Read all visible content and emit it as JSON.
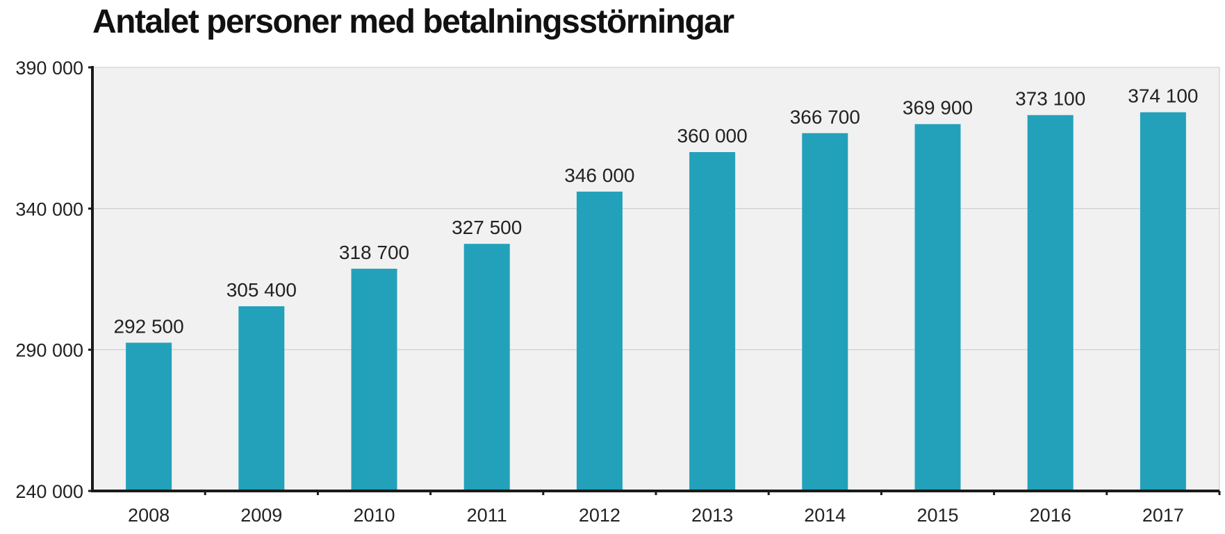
{
  "chart_data": {
    "type": "bar",
    "title": "Antalet personer med betalningsstörningar",
    "xlabel": "",
    "ylabel": "",
    "categories": [
      "2008",
      "2009",
      "2010",
      "2011",
      "2012",
      "2013",
      "2014",
      "2015",
      "2016",
      "2017"
    ],
    "values": [
      292500,
      305400,
      318700,
      327500,
      346000,
      360000,
      366700,
      369900,
      373100,
      374100
    ],
    "data_labels": [
      "292 500",
      "305 400",
      "318 700",
      "327 500",
      "346 000",
      "360 000",
      "366 700",
      "369 900",
      "373 100",
      "374 100"
    ],
    "ylim": [
      240000,
      390000
    ],
    "yticks": [
      240000,
      290000,
      340000,
      390000
    ],
    "ytick_labels": [
      "240 000",
      "290 000",
      "340 000",
      "390 000"
    ],
    "grid": true,
    "legend": "none",
    "colors": {
      "bar": "#23a1bb",
      "plot_background": "#f1f1f1",
      "gridline": "#c8c8c8",
      "axis": "#1a1a1a"
    }
  }
}
